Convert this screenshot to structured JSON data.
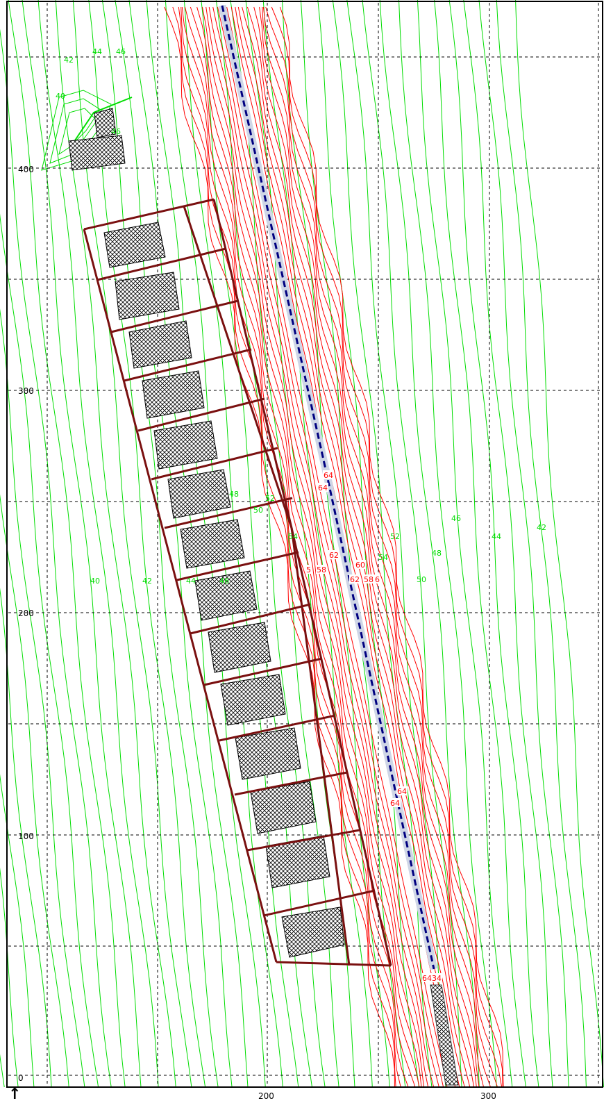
{
  "colors": {
    "background": "#ffffff",
    "frame": "#000000",
    "grid": "#000000",
    "terrain_contour": "#00dd00",
    "embankment_contour": "#ff0000",
    "embankment_label_bg": "#ffffff",
    "plot_outline": "#7a1010",
    "hatch_fill": "#000000",
    "route_center": "#000080",
    "route_edge": "#cfd6e6"
  },
  "axes": {
    "x_ticks": [
      "200",
      "300"
    ],
    "y_ticks": [
      "0",
      "100",
      "200",
      "300",
      "400"
    ],
    "north_arrow_glyph": "↑"
  },
  "contour_labels": {
    "terrain": [
      {
        "text": "42"
      },
      {
        "text": "44"
      },
      {
        "text": "46"
      },
      {
        "text": "40"
      },
      {
        "text": "46"
      },
      {
        "text": "48"
      },
      {
        "text": "50"
      },
      {
        "text": "52"
      },
      {
        "text": "54"
      },
      {
        "text": "40"
      },
      {
        "text": "42"
      },
      {
        "text": "44"
      },
      {
        "text": "46"
      },
      {
        "text": "52"
      },
      {
        "text": "54"
      },
      {
        "text": "48"
      },
      {
        "text": "50"
      },
      {
        "text": "46"
      },
      {
        "text": "44"
      },
      {
        "text": "42"
      }
    ],
    "embankment": [
      {
        "text": "64"
      },
      {
        "text": "64"
      },
      {
        "text": "5"
      },
      {
        "text": "58"
      },
      {
        "text": "62"
      },
      {
        "text": "60"
      },
      {
        "text": "62"
      },
      {
        "text": "58"
      },
      {
        "text": "6"
      },
      {
        "text": "64"
      },
      {
        "text": "64"
      },
      {
        "text": "6434"
      }
    ]
  }
}
